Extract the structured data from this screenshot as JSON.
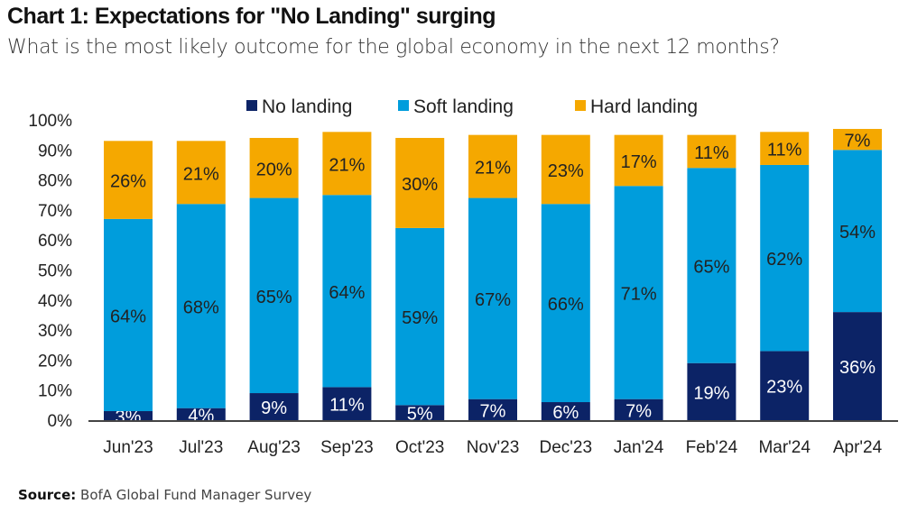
{
  "title": "Chart 1: Expectations for \"No Landing\" surging",
  "subtitle": "What is the most likely outcome for the global economy in the next 12 months?",
  "source_label": "Source:",
  "source_text": "BofA Global Fund Manager Survey",
  "chart_data": {
    "type": "bar",
    "stacked": true,
    "categories": [
      "Jun'23",
      "Jul'23",
      "Aug'23",
      "Sep'23",
      "Oct'23",
      "Nov'23",
      "Dec'23",
      "Jan'24",
      "Feb'24",
      "Mar'24",
      "Apr'24"
    ],
    "series": [
      {
        "name": "No landing",
        "color": "#0c2366",
        "values": [
          3,
          4,
          9,
          11,
          5,
          7,
          6,
          7,
          19,
          23,
          36
        ]
      },
      {
        "name": "Soft landing",
        "color": "#009ddc",
        "values": [
          64,
          68,
          65,
          64,
          59,
          67,
          66,
          71,
          65,
          62,
          54
        ]
      },
      {
        "name": "Hard landing",
        "color": "#f5a800",
        "values": [
          26,
          21,
          20,
          21,
          30,
          21,
          23,
          17,
          11,
          11,
          7
        ]
      }
    ],
    "ylim": [
      0,
      100
    ],
    "yticks": [
      "0%",
      "10%",
      "20%",
      "30%",
      "40%",
      "50%",
      "60%",
      "70%",
      "80%",
      "90%",
      "100%"
    ],
    "legend_position": "top",
    "grid": false
  }
}
